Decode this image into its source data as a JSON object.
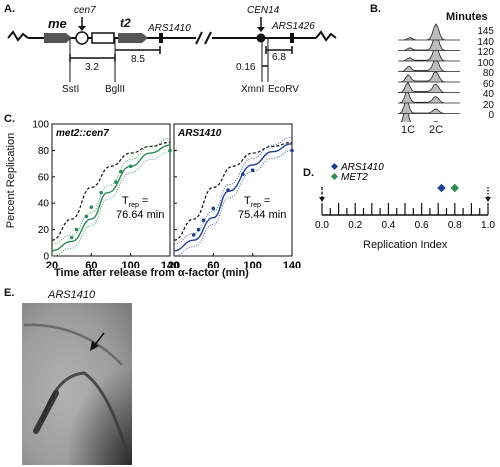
{
  "panel_a": {
    "letter": "A.",
    "gene_me": "me",
    "cen7": "cen7",
    "t2": "t2",
    "ars1410": "ARS1410",
    "cen14": "CEN14",
    "ars1426": "ARS1426",
    "dist_32": "3.2",
    "dist_85": "8.5",
    "dist_016": "0.16",
    "dist_68": "6.8",
    "site_ssti": "SstI",
    "site_bglii": "BglII",
    "site_xmni": "XmnI",
    "site_ecorv": "EcoRV"
  },
  "panel_b": {
    "letter": "B.",
    "minutes_header": "Minutes",
    "minutes": [
      "145",
      "140",
      "120",
      "100",
      "80",
      "60",
      "40",
      "20",
      "0"
    ],
    "x_1c": "1C",
    "x_2c": "2C"
  },
  "panel_c": {
    "letter": "C.",
    "ylabel": "Percent Replication",
    "xlabel": "Time after release from α-factor (min)",
    "plots": [
      {
        "title": "met2::cen7",
        "trep_value": "76.64 min",
        "color": "#2e8b57",
        "fit_curve": [
          [
            20,
            4
          ],
          [
            40,
            11
          ],
          [
            60,
            28
          ],
          [
            76.64,
            48
          ],
          [
            100,
            68
          ],
          [
            120,
            78
          ],
          [
            140,
            84
          ]
        ],
        "points": [
          [
            40,
            14
          ],
          [
            45,
            20
          ],
          [
            55,
            30
          ],
          [
            60,
            37
          ],
          [
            70,
            48
          ],
          [
            85,
            56
          ],
          [
            90,
            64
          ],
          [
            100,
            68
          ],
          [
            140,
            80
          ]
        ]
      },
      {
        "title": "ARS1410",
        "trep_value": "75.44 min",
        "color": "#1f3f8f",
        "fit_curve": [
          [
            20,
            4
          ],
          [
            40,
            12
          ],
          [
            60,
            29
          ],
          [
            75.44,
            49
          ],
          [
            100,
            69
          ],
          [
            120,
            79
          ],
          [
            140,
            85
          ]
        ],
        "points": [
          [
            40,
            16
          ],
          [
            45,
            20
          ],
          [
            50,
            27
          ],
          [
            60,
            36
          ],
          [
            75,
            50
          ],
          [
            90,
            62
          ],
          [
            100,
            65
          ],
          [
            140,
            80
          ]
        ]
      }
    ],
    "reference_curve": [
      [
        20,
        12
      ],
      [
        40,
        28
      ],
      [
        60,
        52
      ],
      [
        80,
        68
      ],
      [
        100,
        78
      ],
      [
        120,
        83
      ],
      [
        140,
        86
      ]
    ],
    "x_ticks": [
      "20",
      "60",
      "100",
      "140"
    ],
    "y_ticks": [
      "0",
      "20",
      "40",
      "60",
      "80",
      "100"
    ],
    "trep_prefix": "T",
    "trep_sub": "rep",
    "trep_eq": "="
  },
  "panel_d": {
    "letter": "D.",
    "xlabel": "Replication Index",
    "ticks": [
      "0.0",
      "0.2",
      "0.4",
      "0.6",
      "0.8",
      "1.0"
    ],
    "legend": [
      {
        "label": "ARS1410",
        "color": "#1f3f8f",
        "value": 0.72
      },
      {
        "label": "MET2",
        "color": "#2e8b57",
        "value": 0.8
      }
    ]
  },
  "panel_e": {
    "letter": "E.",
    "title": "ARS1410"
  }
}
